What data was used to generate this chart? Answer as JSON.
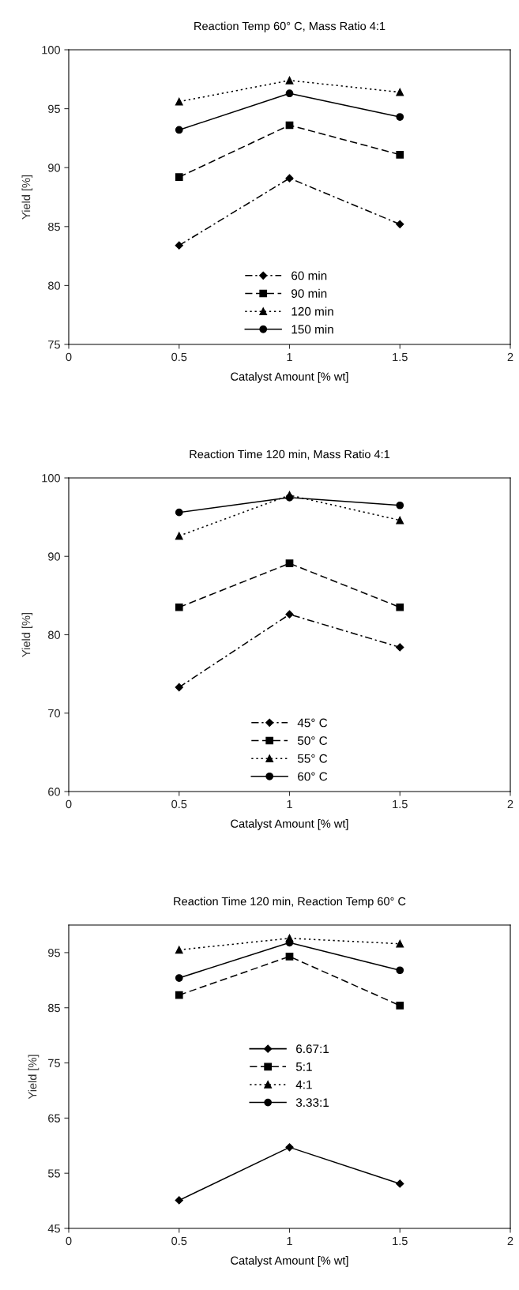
{
  "chart_data": [
    {
      "type": "line",
      "title": "Reaction Temp 60° C, Mass Ratio 4:1",
      "xlabel": "Catalyst Amount [% wt]",
      "ylabel": "Yield [%]",
      "x": [
        0.5,
        1,
        1.5
      ],
      "xlim": [
        0,
        2
      ],
      "xticks": [
        0,
        0.5,
        1,
        1.5,
        2
      ],
      "ylim": [
        75,
        100
      ],
      "yticks": [
        75,
        80,
        85,
        90,
        95,
        100
      ],
      "grid": false,
      "legend": "bottom",
      "series": [
        {
          "name": "60 min",
          "color": "#000000",
          "values": [
            83.4,
            89.1,
            85.2
          ],
          "marker": "diamond",
          "line_style": "dashdot"
        },
        {
          "name": "90 min",
          "color": "#000000",
          "values": [
            89.2,
            93.6,
            91.1
          ],
          "marker": "square",
          "line_style": "dashed"
        },
        {
          "name": "120 min",
          "color": "#000000",
          "values": [
            95.6,
            97.4,
            96.4
          ],
          "marker": "triangle",
          "line_style": "dotted"
        },
        {
          "name": "150 min",
          "color": "#000000",
          "values": [
            93.2,
            96.3,
            94.3
          ],
          "marker": "circle",
          "line_style": "solid"
        }
      ]
    },
    {
      "type": "line",
      "title": "Reaction Time 120 min, Mass Ratio 4:1",
      "xlabel": "Catalyst Amount [% wt]",
      "ylabel": "Yield [%]",
      "x": [
        0.5,
        1,
        1.5
      ],
      "xlim": [
        0,
        2
      ],
      "xticks": [
        0,
        0.5,
        1,
        1.5,
        2
      ],
      "ylim": [
        60,
        100
      ],
      "yticks": [
        60,
        70,
        80,
        90,
        100
      ],
      "grid": false,
      "legend": "bottom",
      "series": [
        {
          "name": "45° C",
          "color": "#000000",
          "values": [
            73.3,
            82.6,
            78.4
          ],
          "marker": "diamond",
          "line_style": "dashdot"
        },
        {
          "name": "50° C",
          "color": "#000000",
          "values": [
            83.5,
            89.1,
            83.5
          ],
          "marker": "square",
          "line_style": "dashed"
        },
        {
          "name": "55° C",
          "color": "#000000",
          "values": [
            92.6,
            97.8,
            94.6
          ],
          "marker": "triangle",
          "line_style": "dotted"
        },
        {
          "name": "60° C",
          "color": "#000000",
          "values": [
            95.6,
            97.5,
            96.5
          ],
          "marker": "circle",
          "line_style": "solid"
        }
      ]
    },
    {
      "type": "line",
      "title": "Reaction Time 120 min, Reaction Temp 60° C",
      "xlabel": "Catalyst Amount [% wt]",
      "ylabel": "Yield [%]",
      "x": [
        0.5,
        1,
        1.5
      ],
      "xlim": [
        0,
        2
      ],
      "xticks": [
        0,
        0.5,
        1,
        1.5,
        2
      ],
      "ylim": [
        45,
        100
      ],
      "yticks": [
        45,
        55,
        65,
        75,
        85,
        95
      ],
      "grid": false,
      "legend": "center",
      "series": [
        {
          "name": "6.67:1",
          "color": "#000000",
          "values": [
            50.1,
            59.7,
            53.1
          ],
          "marker": "diamond",
          "line_style": "solid"
        },
        {
          "name": "5:1",
          "color": "#000000",
          "values": [
            87.3,
            94.3,
            85.4
          ],
          "marker": "square",
          "line_style": "dashed"
        },
        {
          "name": "4:1",
          "color": "#000000",
          "values": [
            95.5,
            97.6,
            96.6
          ],
          "marker": "triangle",
          "line_style": "dotted"
        },
        {
          "name": "3.33:1",
          "color": "#000000",
          "values": [
            90.4,
            96.8,
            91.8
          ],
          "marker": "circle",
          "line_style": "solid"
        }
      ]
    }
  ]
}
